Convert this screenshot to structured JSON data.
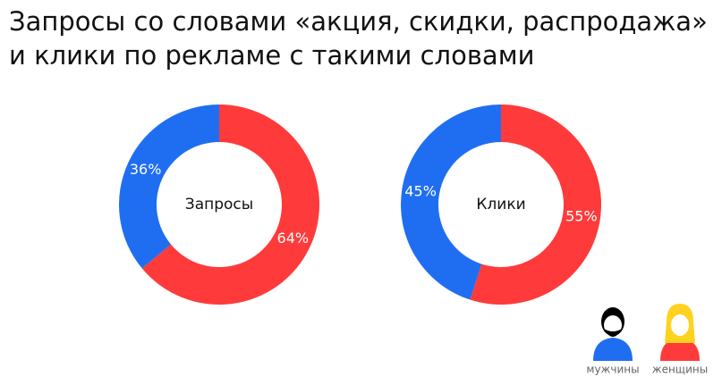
{
  "title": [
    "Запросы со словами «акция, скидки, распродажа»",
    "и клики по рекламе с такими словами"
  ],
  "chart_data": [
    {
      "type": "donut",
      "center_label": "Запросы",
      "categories": [
        "мужчины",
        "женщины"
      ],
      "colors": [
        "#1f6ef2",
        "#ff3a3a"
      ],
      "values": [
        36,
        64
      ],
      "value_labels": [
        "36%",
        "64%"
      ]
    },
    {
      "type": "donut",
      "center_label": "Клики",
      "categories": [
        "мужчины",
        "женщины"
      ],
      "colors": [
        "#1f6ef2",
        "#ff3a3a"
      ],
      "values": [
        45,
        55
      ],
      "value_labels": [
        "45%",
        "55%"
      ]
    }
  ]
}
